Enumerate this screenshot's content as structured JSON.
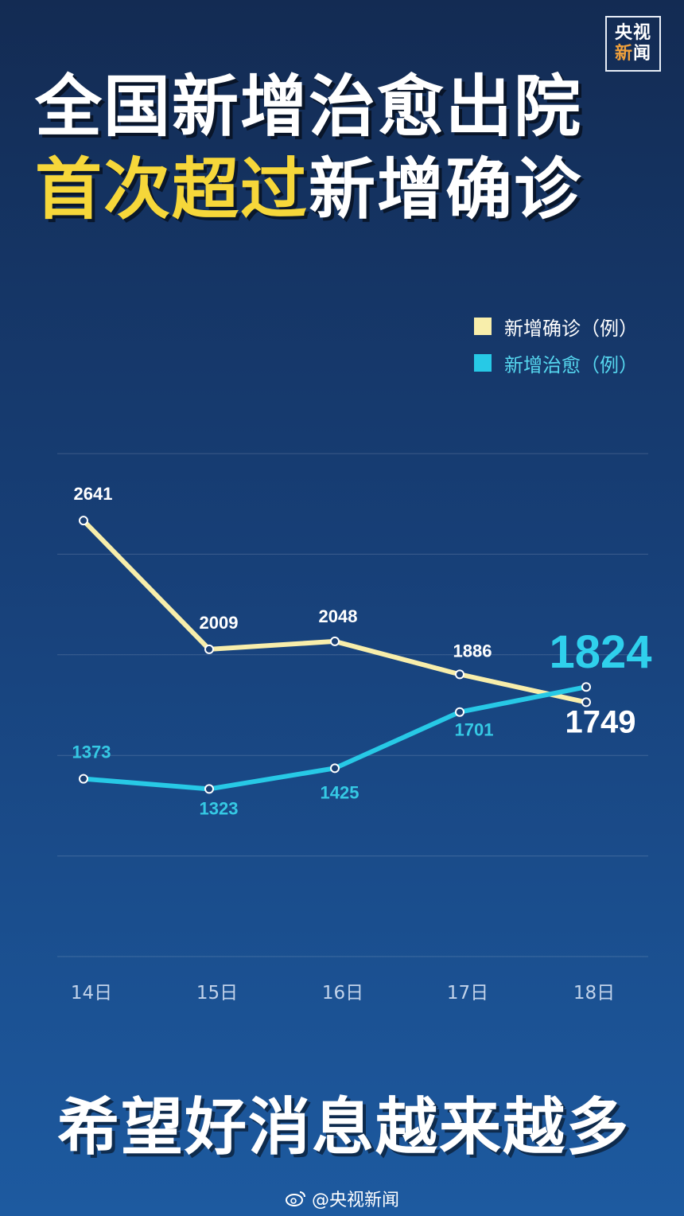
{
  "logo": {
    "line1": "央视",
    "line2_accent": "新",
    "line2_rest": "闻"
  },
  "title": {
    "line1": "全国新增治愈出院",
    "line2_highlight": "首次超过",
    "line2_rest": "新增确诊"
  },
  "footer": {
    "slogan": "希望好消息越来越多",
    "weibo_handle": "@央视新闻"
  },
  "colors": {
    "confirmed": "#f8eeab",
    "cured": "#27c9e6",
    "highlight": "#f6d73a"
  },
  "chart_data": {
    "type": "line",
    "categories": [
      "14日",
      "15日",
      "16日",
      "17日",
      "18日"
    ],
    "series": [
      {
        "name": "新增确诊（例）",
        "values": [
          2641,
          2009,
          2048,
          1886,
          1749
        ]
      },
      {
        "name": "新增治愈（例）",
        "values": [
          1373,
          1323,
          1425,
          1701,
          1824
        ]
      }
    ],
    "labels": {
      "confirmed": [
        "2641",
        "2009",
        "2048",
        "1886",
        "1749"
      ],
      "cured": [
        "1373",
        "1323",
        "1425",
        "1701",
        "1824"
      ]
    },
    "title": "",
    "xlabel": "",
    "ylabel": "",
    "ylim": [
      500,
      2970
    ],
    "grid": true,
    "legend": "top-right"
  }
}
